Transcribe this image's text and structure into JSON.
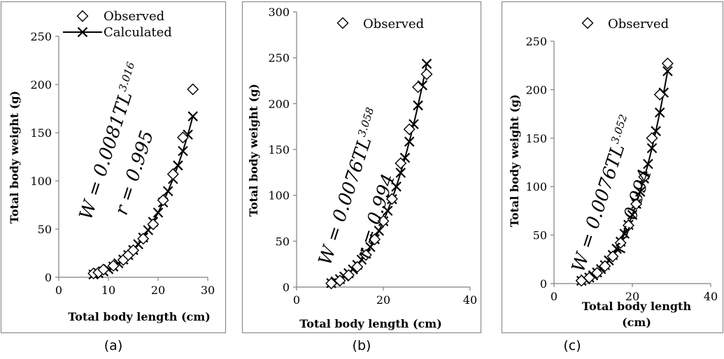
{
  "chart_data": [
    {
      "type": "scatter",
      "panel_label": "(a)",
      "xlabel": "Total body length (cm)",
      "ylabel": "Total body weight (g)",
      "xlim": [
        0,
        30
      ],
      "ylim": [
        0,
        250
      ],
      "xticks": [
        0,
        10,
        20,
        30
      ],
      "yticks": [
        0,
        50,
        100,
        150,
        200,
        250
      ],
      "legend": [
        "Observed",
        "Calculated"
      ],
      "legend_position": "top",
      "equation_main": "W = 0.0081TL",
      "equation_exp": "3.016",
      "equation_r": "r = 0.995",
      "series": [
        {
          "name": "Observed",
          "marker": "diamond",
          "x": [
            7,
            8,
            9,
            11,
            13,
            14,
            15,
            17,
            19,
            21,
            23,
            25,
            27
          ],
          "y": [
            4,
            5,
            8,
            12,
            18,
            23,
            28,
            40,
            55,
            80,
            107,
            145,
            195
          ]
        },
        {
          "name": "Calculated",
          "marker": "cross",
          "x": [
            7,
            8,
            9,
            10,
            11,
            12,
            13,
            14,
            15,
            16,
            17,
            18,
            19,
            20,
            21,
            22,
            23,
            24,
            25,
            26,
            27
          ],
          "y": [
            2.9,
            4.3,
            6.1,
            8.4,
            11.1,
            14.5,
            18.4,
            23.0,
            28.3,
            34.3,
            41.2,
            48.9,
            57.5,
            67.1,
            77.7,
            89.3,
            102.0,
            116.0,
            131.0,
            148.0,
            167.0
          ]
        }
      ]
    },
    {
      "type": "scatter",
      "panel_label": "(b)",
      "xlabel": "Total body length (cm)",
      "ylabel": "Total body weight (g)",
      "xlim": [
        0,
        40
      ],
      "ylim": [
        0,
        300
      ],
      "xticks": [
        0,
        20,
        40
      ],
      "yticks": [
        0,
        50,
        100,
        150,
        200,
        250,
        300
      ],
      "legend": [
        "Observed"
      ],
      "legend_position": "top",
      "equation_main": "W = 0.0076TL",
      "equation_exp": "3.058",
      "equation_r": "r = 0.994",
      "series": [
        {
          "name": "Observed",
          "marker": "diamond",
          "x": [
            8,
            10,
            12,
            14,
            16,
            18,
            20,
            22,
            24,
            26,
            28,
            30
          ],
          "y": [
            4,
            7,
            13,
            22,
            35,
            52,
            72,
            96,
            135,
            172,
            218,
            232
          ]
        },
        {
          "name": "Calculated",
          "marker": "cross",
          "x": [
            8,
            9,
            10,
            11,
            12,
            13,
            14,
            15,
            16,
            17,
            18,
            19,
            20,
            21,
            22,
            23,
            24,
            25,
            26,
            27,
            28,
            29,
            30
          ],
          "y": [
            4.3,
            6.2,
            8.6,
            11.5,
            15.1,
            19.2,
            24.2,
            29.8,
            36.3,
            43.7,
            52.1,
            61.4,
            71.8,
            83.2,
            95.8,
            109.5,
            124.6,
            140.9,
            158.5,
            177.6,
            198.0,
            219.9,
            243.4
          ]
        }
      ]
    },
    {
      "type": "scatter",
      "panel_label": "(c)",
      "xlabel": "Total body length (cm)",
      "ylabel": "Total body weight (g)",
      "xlim": [
        0,
        40
      ],
      "ylim": [
        0,
        250
      ],
      "xticks": [
        0,
        20,
        40
      ],
      "yticks": [
        0,
        50,
        100,
        150,
        200,
        250
      ],
      "legend": [
        "Observed"
      ],
      "legend_position": "top",
      "equation_main": "W = 0.0076TL",
      "equation_exp": "3.052",
      "equation_r": "r = 0.994",
      "series": [
        {
          "name": "Observed",
          "marker": "diamond",
          "x": [
            7,
            9,
            11,
            13,
            15,
            17,
            19,
            21,
            23,
            25,
            27,
            29
          ],
          "y": [
            3,
            6,
            11,
            18,
            28,
            42,
            60,
            82,
            110,
            150,
            195,
            227
          ]
        },
        {
          "name": "Calculated",
          "marker": "cross",
          "x": [
            7,
            8,
            9,
            10,
            11,
            12,
            13,
            14,
            15,
            16,
            17,
            18,
            19,
            20,
            21,
            22,
            23,
            24,
            25,
            26,
            27,
            28,
            29
          ],
          "y": [
            2.9,
            4.3,
            6.2,
            8.5,
            11.4,
            14.9,
            19.0,
            23.9,
            29.5,
            35.9,
            43.2,
            51.4,
            60.6,
            70.9,
            82.2,
            94.7,
            108.4,
            123.4,
            139.7,
            157.3,
            176.4,
            197.0,
            219.1
          ]
        }
      ]
    }
  ]
}
